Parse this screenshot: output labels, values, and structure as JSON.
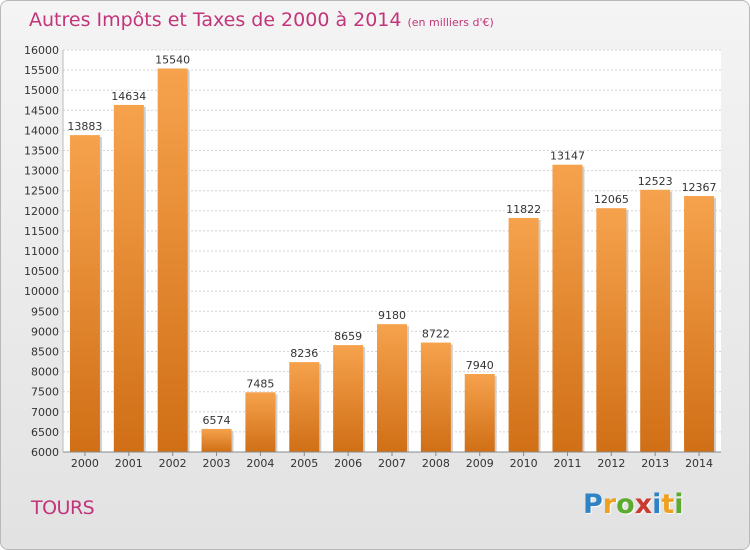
{
  "title": "Autres Impôts et Taxes de 2000 à 2014",
  "subtitle": "(en milliers d'€)",
  "commune": "TOURS",
  "logo": {
    "letters": [
      "P",
      "r",
      "o",
      "x",
      "i",
      "t",
      "i"
    ],
    "colors": [
      "#2f83c5",
      "#f0a020",
      "#5cab2e",
      "#c93a2f",
      "#2f83c5",
      "#f0a020",
      "#5cab2e"
    ]
  },
  "colors": {
    "accent": "#c2357a",
    "bar_light": "#f6a24d",
    "bar_dark": "#d06f16"
  },
  "chart_data": {
    "type": "bar",
    "categories": [
      "2000",
      "2001",
      "2002",
      "2003",
      "2004",
      "2005",
      "2006",
      "2007",
      "2008",
      "2009",
      "2010",
      "2011",
      "2012",
      "2013",
      "2014"
    ],
    "values": [
      13883,
      14634,
      15540,
      6574,
      7485,
      8236,
      8659,
      9180,
      8722,
      7940,
      11822,
      13147,
      12065,
      12523,
      12367
    ],
    "ylim": [
      6000,
      16000
    ],
    "yticks": [
      6000,
      6500,
      7000,
      7500,
      8000,
      8500,
      9000,
      9500,
      10000,
      10500,
      11000,
      11500,
      12000,
      12500,
      13000,
      13500,
      14000,
      14500,
      15000,
      15500,
      16000
    ],
    "grid": true
  }
}
